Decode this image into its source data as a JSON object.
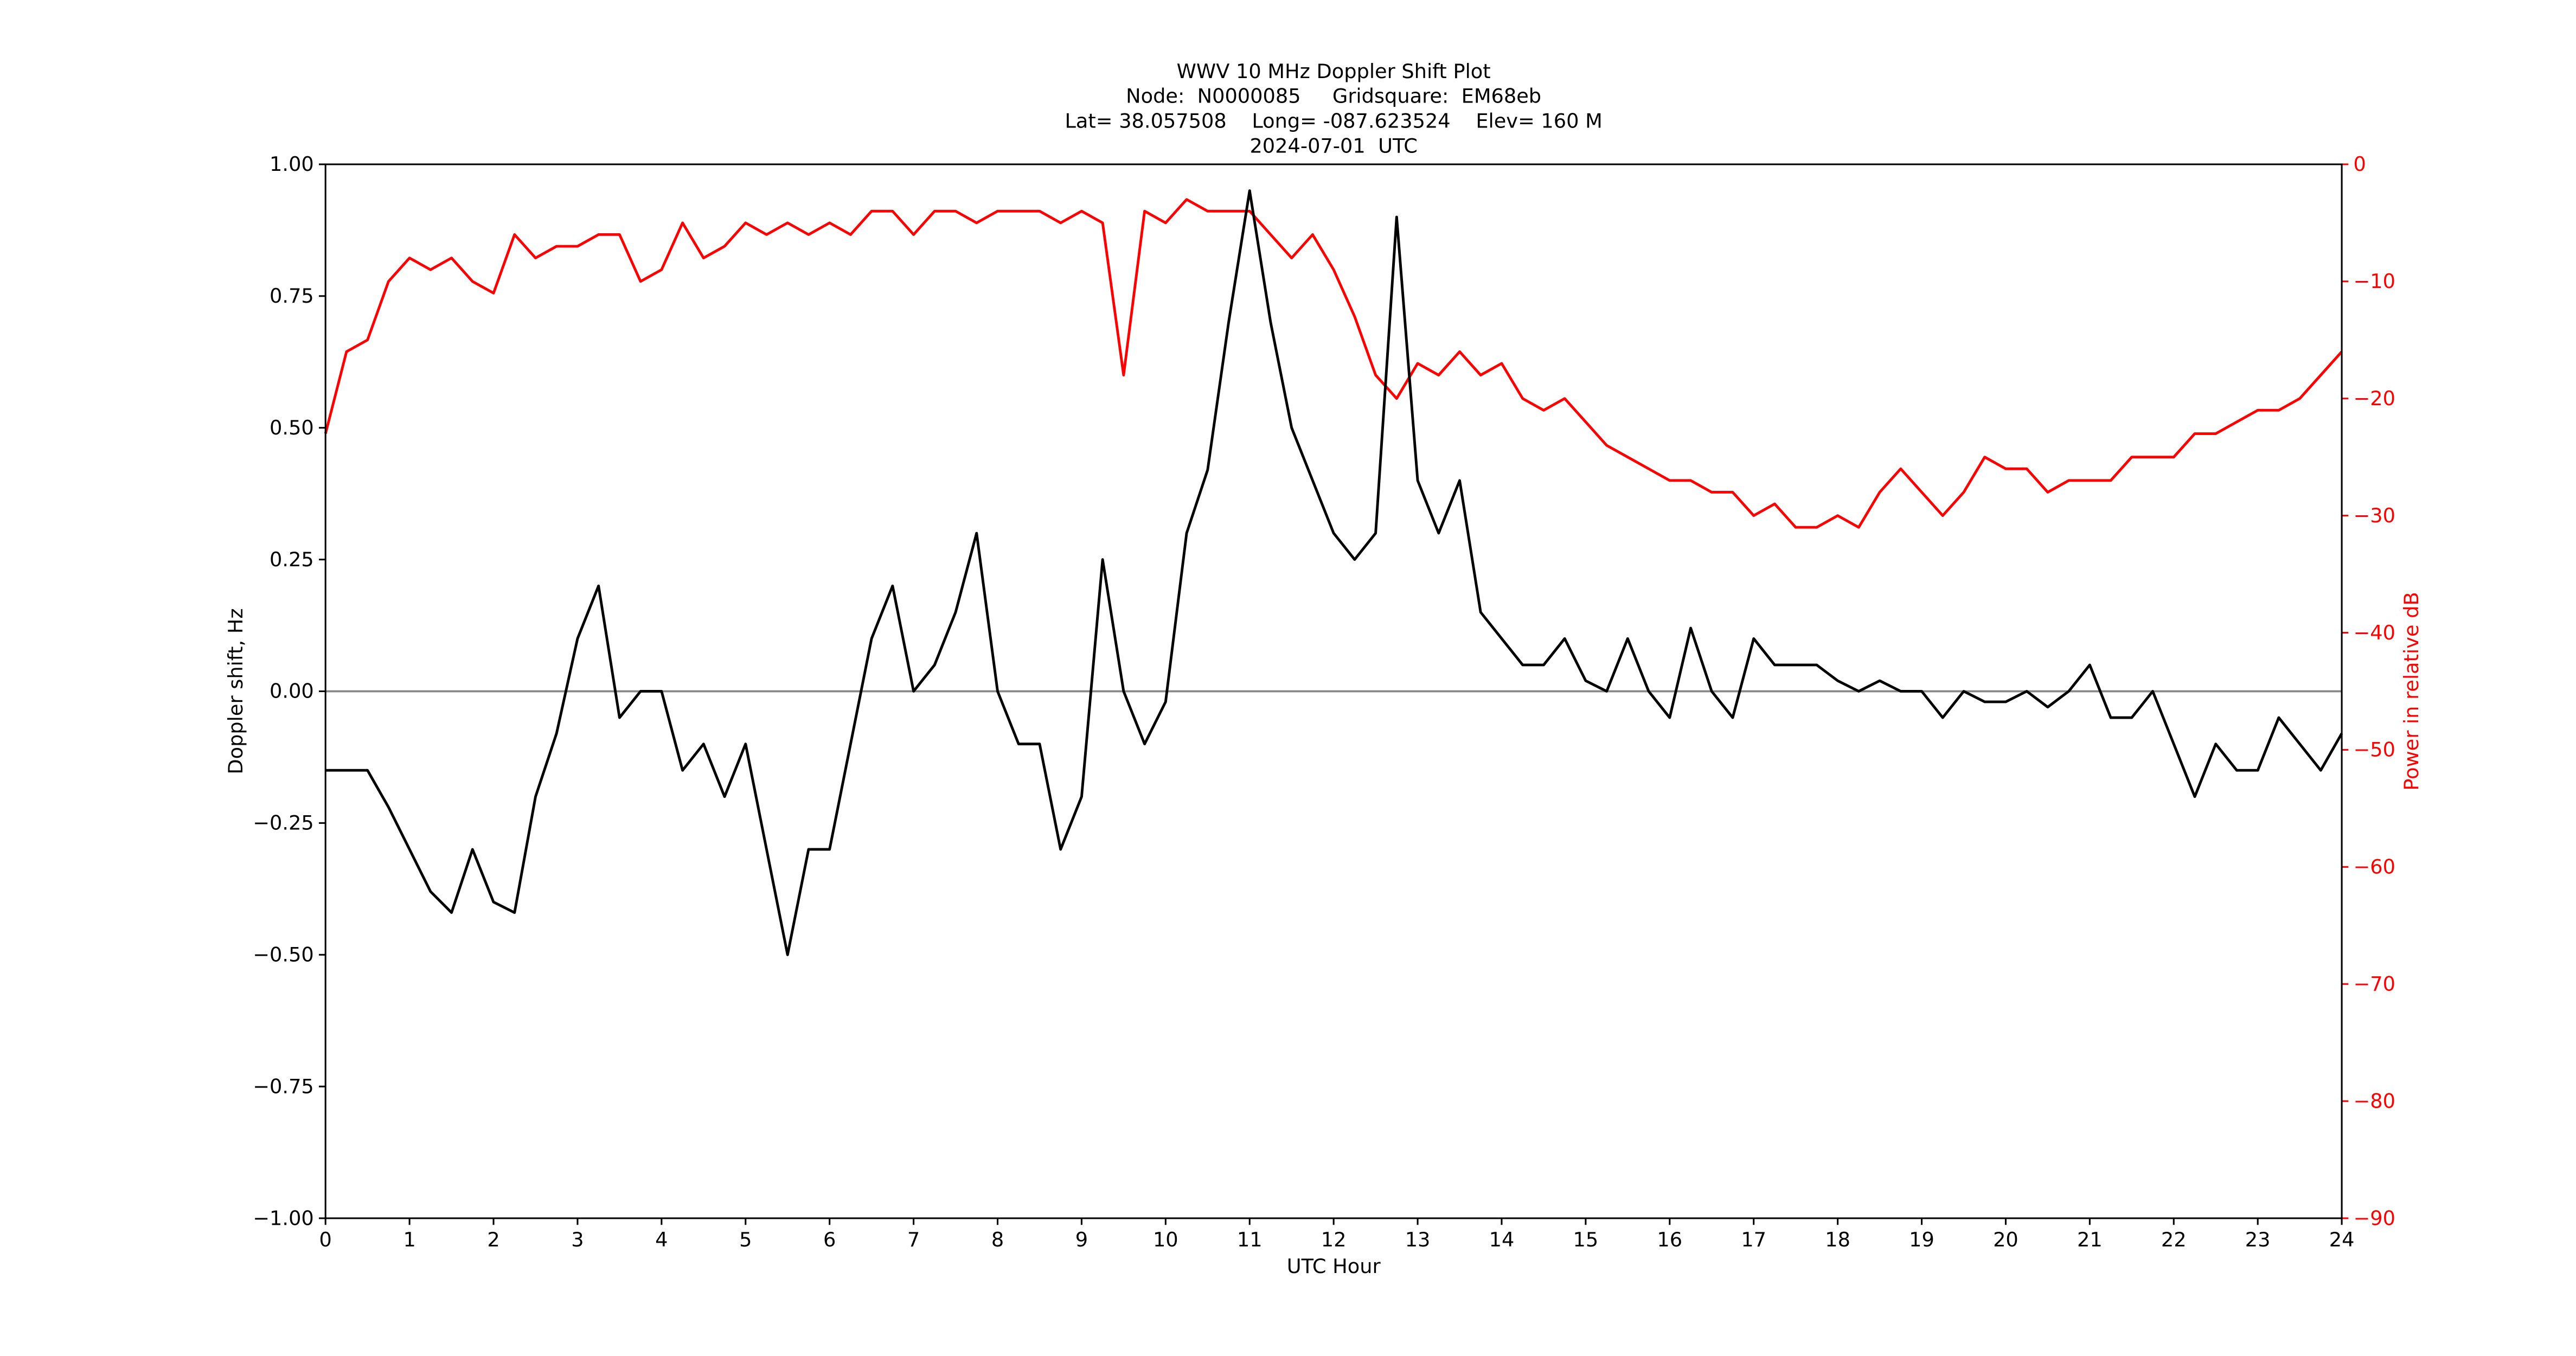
{
  "chart_data": {
    "type": "line",
    "title": [
      "WWV 10 MHz Doppler Shift Plot",
      "Node:  N0000085     Gridsquare:  EM68eb",
      "Lat= 38.057508    Long= -087.623524    Elev= 160 M",
      "2024-07-01  UTC"
    ],
    "xlabel": "UTC Hour",
    "ylabel": "Doppler shift, Hz",
    "y2label": "Power in relative dB",
    "y2color": "#ff0000",
    "x": [
      0,
      0.25,
      0.5,
      0.75,
      1,
      1.25,
      1.5,
      1.75,
      2,
      2.25,
      2.5,
      2.75,
      3,
      3.25,
      3.5,
      3.75,
      4,
      4.25,
      4.5,
      4.75,
      5,
      5.25,
      5.5,
      5.75,
      6,
      6.25,
      6.5,
      6.75,
      7,
      7.25,
      7.5,
      7.75,
      8,
      8.25,
      8.5,
      8.75,
      9,
      9.25,
      9.5,
      9.75,
      10,
      10.25,
      10.5,
      10.75,
      11,
      11.25,
      11.5,
      11.75,
      12,
      12.25,
      12.5,
      12.75,
      13,
      13.25,
      13.5,
      13.75,
      14,
      14.25,
      14.5,
      14.75,
      15,
      15.25,
      15.5,
      15.75,
      16,
      16.25,
      16.5,
      16.75,
      17,
      17.25,
      17.5,
      17.75,
      18,
      18.25,
      18.5,
      18.75,
      19,
      19.25,
      19.5,
      19.75,
      20,
      20.25,
      20.5,
      20.75,
      21,
      21.25,
      21.5,
      21.75,
      22,
      22.25,
      22.5,
      22.75,
      23,
      23.25,
      23.5,
      23.75,
      24
    ],
    "series": [
      {
        "name": "Doppler shift",
        "color": "#000000",
        "values": [
          -0.15,
          -0.15,
          -0.15,
          -0.22,
          -0.3,
          -0.38,
          -0.42,
          -0.3,
          -0.4,
          -0.42,
          -0.2,
          -0.08,
          0.1,
          0.2,
          -0.05,
          0,
          0,
          -0.15,
          -0.1,
          -0.2,
          -0.1,
          -0.3,
          -0.5,
          -0.3,
          -0.3,
          -0.1,
          0.1,
          0.2,
          0,
          0.05,
          0.15,
          0.3,
          0,
          -0.1,
          -0.1,
          -0.3,
          -0.2,
          0.25,
          0,
          -0.1,
          -0.02,
          0.3,
          0.42,
          0.7,
          0.95,
          0.7,
          0.5,
          0.4,
          0.3,
          0.25,
          0.3,
          0.9,
          0.4,
          0.3,
          0.4,
          0.15,
          0.1,
          0.05,
          0.05,
          0.1,
          0.02,
          0,
          0.1,
          0,
          -0.05,
          0.12,
          0,
          -0.05,
          0.1,
          0.05,
          0.05,
          0.05,
          0.02,
          0,
          0.02,
          0,
          0,
          -0.05,
          0,
          -0.02,
          -0.02,
          0,
          -0.03,
          0,
          0.05,
          -0.05,
          -0.05,
          0,
          -0.1,
          -0.2,
          -0.1,
          -0.15,
          -0.15,
          -0.05,
          -0.1,
          -0.15,
          -0.08
        ]
      },
      {
        "name": "Power",
        "color": "#ff0000",
        "axis": "y2",
        "values": [
          -23,
          -16,
          -15,
          -10,
          -8,
          -9,
          -8,
          -10,
          -11,
          -6,
          -8,
          -7,
          -7,
          -6,
          -6,
          -10,
          -9,
          -5,
          -8,
          -7,
          -5,
          -6,
          -5,
          -6,
          -5,
          -6,
          -4,
          -4,
          -6,
          -4,
          -4,
          -5,
          -4,
          -4,
          -4,
          -5,
          -4,
          -5,
          -18,
          -4,
          -5,
          -3,
          -4,
          -4,
          -4,
          -6,
          -8,
          -6,
          -9,
          -13,
          -18,
          -20,
          -17,
          -18,
          -16,
          -18,
          -17,
          -20,
          -21,
          -20,
          -22,
          -24,
          -25,
          -26,
          -27,
          -27,
          -28,
          -28,
          -30,
          -29,
          -31,
          -31,
          -30,
          -31,
          -28,
          -26,
          -28,
          -30,
          -28,
          -25,
          -26,
          -26,
          -28,
          -27,
          -27,
          -27,
          -25,
          -25,
          -25,
          -23,
          -23,
          -22,
          -21,
          -21,
          -20,
          -18,
          -16
        ]
      }
    ],
    "hline": {
      "value": 0,
      "color": "#888888"
    },
    "xlim": [
      0,
      24
    ],
    "xticks": [
      0,
      1,
      2,
      3,
      4,
      5,
      6,
      7,
      8,
      9,
      10,
      11,
      12,
      13,
      14,
      15,
      16,
      17,
      18,
      19,
      20,
      21,
      22,
      23,
      24
    ],
    "ylim": [
      -1,
      1
    ],
    "yticks": [
      {
        "value": -1,
        "label": "−1.00"
      },
      {
        "value": -0.75,
        "label": "−0.75"
      },
      {
        "value": -0.5,
        "label": "−0.50"
      },
      {
        "value": -0.25,
        "label": "−0.25"
      },
      {
        "value": 0,
        "label": "0.00"
      },
      {
        "value": 0.25,
        "label": "0.25"
      },
      {
        "value": 0.5,
        "label": "0.50"
      },
      {
        "value": 0.75,
        "label": "0.75"
      },
      {
        "value": 1,
        "label": "1.00"
      }
    ],
    "y2lim": [
      -90,
      0
    ],
    "y2ticks": [
      {
        "value": -90,
        "label": "−90"
      },
      {
        "value": -80,
        "label": "−80"
      },
      {
        "value": -70,
        "label": "−70"
      },
      {
        "value": -60,
        "label": "−60"
      },
      {
        "value": -50,
        "label": "−50"
      },
      {
        "value": -40,
        "label": "−40"
      },
      {
        "value": -30,
        "label": "−30"
      },
      {
        "value": -20,
        "label": "−20"
      },
      {
        "value": -10,
        "label": "−10"
      },
      0
    ]
  }
}
